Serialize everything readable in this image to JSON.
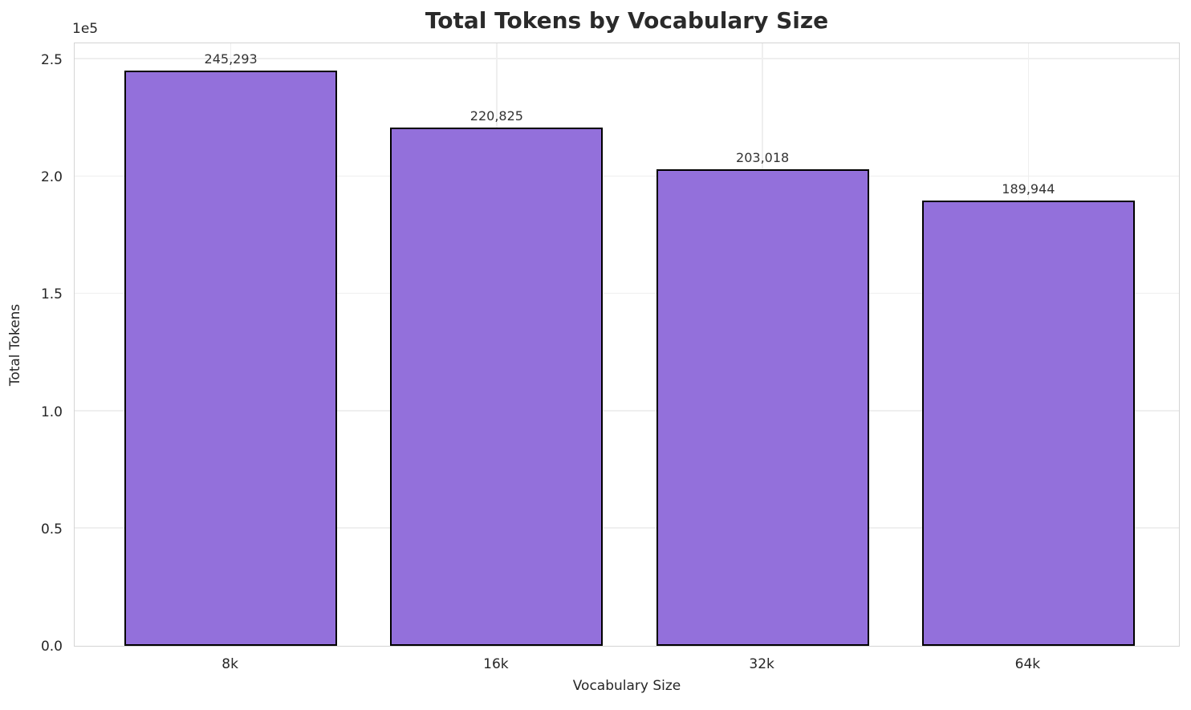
{
  "chart_data": {
    "type": "bar",
    "title": "Total Tokens by Vocabulary Size",
    "xlabel": "Vocabulary Size",
    "ylabel": "Total Tokens",
    "y_offset_text": "1e5",
    "categories": [
      "8k",
      "16k",
      "32k",
      "64k"
    ],
    "values": [
      245293,
      220825,
      203018,
      189944
    ],
    "bar_labels": [
      "245,293",
      "220,825",
      "203,018",
      "189,944"
    ],
    "y_ticks": [
      "0.0",
      "0.5",
      "1.0",
      "1.5",
      "2.0",
      "2.5"
    ],
    "y_tick_values": [
      0,
      50000,
      100000,
      150000,
      200000,
      250000
    ],
    "ylim": [
      0,
      257500
    ],
    "grid": true,
    "legend": "none",
    "bar_color": "#9370DB",
    "bar_edge_color": "#000000",
    "grid_color": "#efefef",
    "spine_color": "#d4d4d4",
    "title_color": "#2a2a2a",
    "text_color": "#262626"
  }
}
